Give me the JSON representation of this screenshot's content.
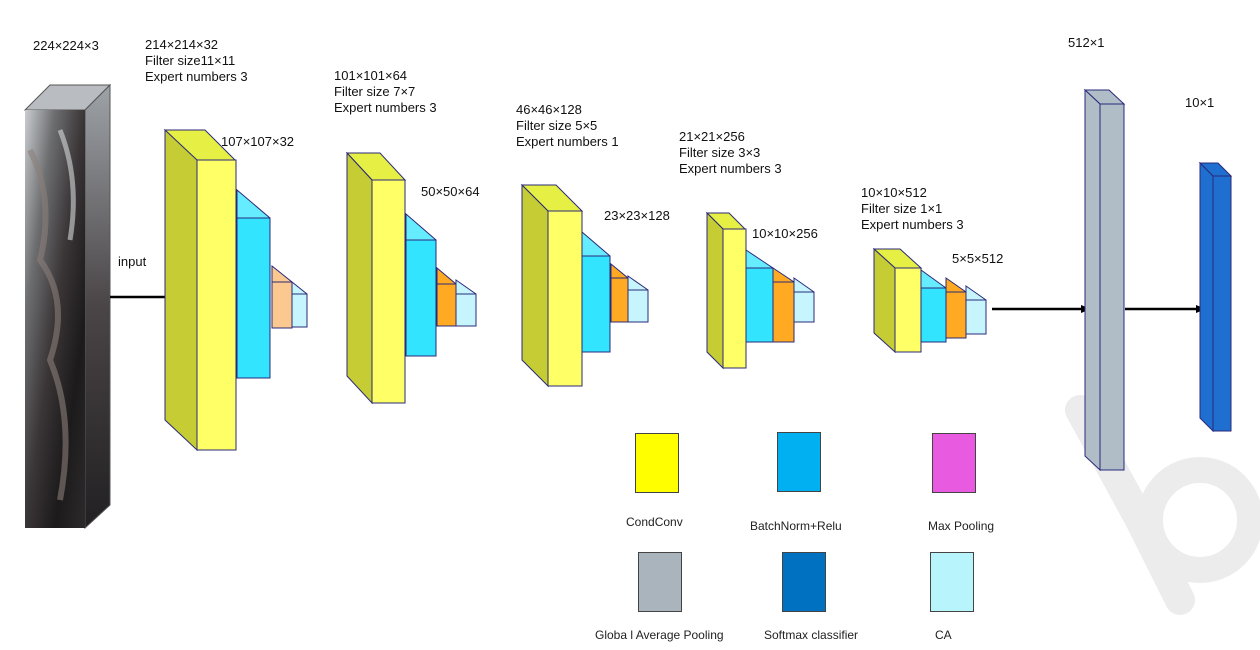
{
  "input_label": "input",
  "labels": {
    "input_dims": "224×224×3",
    "block1": [
      "214×214×32",
      "Filter size11×11",
      "Expert numbers 3"
    ],
    "block1_pool": "107×107×32",
    "block2": [
      "101×101×64",
      "Filter size 7×7",
      "Expert numbers 3"
    ],
    "block2_pool": "50×50×64",
    "block3": [
      "46×46×128",
      "Filter size 5×5",
      "Expert numbers 1"
    ],
    "block3_pool": "23×23×128",
    "block4": [
      "21×21×256",
      "Filter size 3×3",
      "Expert numbers 3"
    ],
    "block4_pool": "10×10×256",
    "block5": [
      "10×10×512",
      "Filter size 1×1",
      "Expert numbers 3"
    ],
    "block5_pool": "5×5×512",
    "gap_dims": "512×1",
    "softmax_dims": "10×1"
  },
  "legend": [
    {
      "id": "condconv",
      "label": "CondConv",
      "color": "#ffff00"
    },
    {
      "id": "bn-relu",
      "label": "BatchNorm+Relu",
      "color": "#00b0f0"
    },
    {
      "id": "max-pooling",
      "label": "Max Pooling",
      "color": "#e85ae0"
    },
    {
      "id": "gap",
      "label": "Globa l Average Pooling",
      "color": "#a9b4bc"
    },
    {
      "id": "softmax",
      "label": "Softmax classifier",
      "color": "#0070c0"
    },
    {
      "id": "ca",
      "label": "CA",
      "color": "#b8f4fb"
    }
  ],
  "colors": {
    "conv_front": "#ffff66",
    "conv_side": "#c6cc33",
    "conv_top": "#e6ef44",
    "bn_front": "#33e4ff",
    "bn_top": "#66ecff",
    "pool_peach": "#fbc98f",
    "pool_orange": "#ffaa22",
    "ca": "#c6f5fd",
    "gap_front": "#b0bcc6",
    "softmax_front": "#1f6fd0",
    "watermark": "#e6e6e6"
  }
}
